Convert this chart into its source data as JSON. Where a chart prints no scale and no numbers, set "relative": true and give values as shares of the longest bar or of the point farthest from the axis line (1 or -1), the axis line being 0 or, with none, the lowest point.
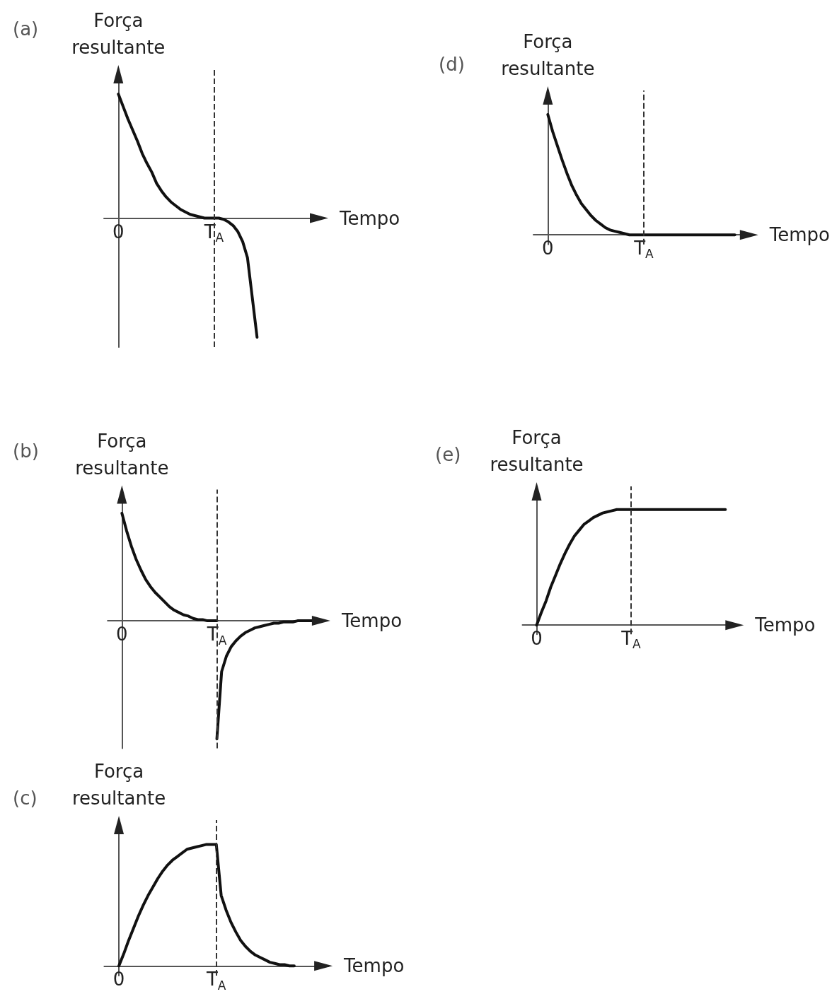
{
  "chart_data": [
    {
      "type": "line",
      "title": "(a)",
      "ylabel": "Força resultante",
      "xlabel": "Tempo",
      "relative": true,
      "categories": [
        null,
        null,
        null,
        "0",
        null,
        null,
        null,
        null,
        null,
        null,
        null,
        null,
        null,
        null,
        null,
        null,
        null,
        null,
        null,
        null,
        null,
        null,
        null,
        "T$_{A}$",
        null,
        null,
        null,
        null,
        null,
        null,
        null,
        null,
        null,
        null,
        null,
        null,
        null,
        null,
        null,
        null,
        null,
        null,
        null,
        null,
        null,
        null,
        null
      ],
      "tick_labels": "x",
      "grid": false,
      "marker": "none",
      "line_style": "solid",
      "ref_lines": [
        {
          "axis": "x",
          "value": "T$_{A}$",
          "color": "#333333",
          "line_style": "dashed"
        }
      ],
      "series": [
        {
          "color": "#111111",
          "values": [
            null,
            null,
            null,
            1,
            0.9,
            0.8,
            0.71,
            0.62,
            0.52,
            0.44,
            0.37,
            0.28,
            0.22,
            0.17,
            0.13,
            0.1,
            0.07,
            0.05,
            0.03,
            0.02,
            0.01,
            0,
            0,
            0,
            0,
            -0.01,
            -0.03,
            -0.06,
            -0.11,
            -0.19,
            -0.32,
            -0.64,
            -0.96,
            null,
            null,
            null,
            null,
            null,
            null,
            null,
            null,
            null,
            null,
            null,
            null,
            null,
            null
          ]
        }
      ]
    },
    {
      "type": "line",
      "title": "(b)",
      "ylabel": "Força resultante",
      "xlabel": "Tempo",
      "relative": true,
      "categories": [
        null,
        null,
        null,
        "0",
        null,
        null,
        null,
        null,
        null,
        null,
        null,
        null,
        null,
        null,
        null,
        null,
        null,
        null,
        null,
        null,
        null,
        null,
        null,
        "T$_{A}$",
        null,
        null,
        null,
        null,
        null,
        null,
        null,
        null,
        null,
        null,
        null,
        null,
        null,
        null,
        null,
        null,
        null,
        null,
        null,
        null,
        null,
        null,
        null
      ],
      "tick_labels": "x",
      "grid": false,
      "marker": "none",
      "line_style": "solid",
      "ref_lines": [
        {
          "axis": "x",
          "value": "T$_{A}$",
          "color": "#333333",
          "line_style": "dashed"
        }
      ],
      "series": [
        {
          "color": "#111111",
          "values": [
            null,
            null,
            null,
            0.91,
            0.76,
            0.63,
            0.52,
            0.43,
            0.35,
            0.29,
            0.24,
            0.2,
            0.16,
            0.12,
            0.09,
            0.07,
            0.05,
            0.04,
            0.02,
            0.01,
            0.01,
            0,
            0,
            0,
            null,
            null,
            null,
            null,
            null,
            null,
            null,
            null,
            null,
            null,
            null,
            null,
            null,
            null,
            null,
            null,
            null,
            null,
            null,
            null,
            null,
            null,
            null
          ]
        },
        {
          "color": "#111111",
          "values": [
            null,
            null,
            null,
            null,
            null,
            null,
            null,
            null,
            null,
            null,
            null,
            null,
            null,
            null,
            null,
            null,
            null,
            null,
            null,
            null,
            null,
            null,
            null,
            -1,
            -0.43,
            -0.3,
            -0.22,
            -0.17,
            -0.13,
            -0.1,
            -0.08,
            -0.06,
            -0.05,
            -0.04,
            -0.03,
            -0.02,
            -0.02,
            -0.01,
            -0.01,
            -0.01,
            0,
            0,
            0,
            0,
            null,
            null,
            null
          ]
        }
      ]
    },
    {
      "type": "line",
      "title": "(c)",
      "ylabel": "Força resultante",
      "xlabel": "Tempo",
      "relative": true,
      "categories": [
        null,
        null,
        null,
        "0",
        null,
        null,
        null,
        null,
        null,
        null,
        null,
        null,
        null,
        null,
        null,
        null,
        null,
        null,
        null,
        null,
        null,
        null,
        null,
        "T$_{A}$",
        null,
        null,
        null,
        null,
        null,
        null,
        null,
        null,
        null,
        null,
        null,
        null,
        null,
        null,
        null,
        null,
        null,
        null,
        null,
        null,
        null,
        null,
        null
      ],
      "tick_labels": "x",
      "grid": false,
      "marker": "none",
      "line_style": "solid",
      "ref_lines": [
        {
          "axis": "x",
          "value": "T$_{A}$",
          "color": "#333333",
          "line_style": "dashed"
        }
      ],
      "series": [
        {
          "color": "#111111",
          "values": [
            null,
            null,
            null,
            0,
            0.1,
            0.21,
            0.31,
            0.41,
            0.5,
            0.58,
            0.65,
            0.72,
            0.78,
            0.83,
            0.87,
            0.9,
            0.93,
            0.96,
            0.97,
            0.98,
            0.99,
            1,
            1,
            1,
            0.58,
            0.46,
            0.36,
            0.28,
            0.21,
            0.16,
            0.12,
            0.09,
            0.07,
            0.05,
            0.03,
            0.02,
            0.01,
            0.01,
            0,
            0,
            null,
            null,
            null,
            null,
            null,
            null,
            null
          ]
        }
      ]
    },
    {
      "type": "line",
      "title": "(d)",
      "ylabel": "Força resultante",
      "xlabel": "Tempo",
      "relative": true,
      "categories": [
        null,
        null,
        null,
        "0",
        null,
        null,
        null,
        null,
        null,
        null,
        null,
        null,
        null,
        null,
        null,
        null,
        null,
        null,
        null,
        null,
        null,
        null,
        null,
        "T$_{A}$",
        null,
        null,
        null,
        null,
        null,
        null,
        null,
        null,
        null,
        null,
        null,
        null,
        null,
        null,
        null,
        null,
        null,
        null,
        null,
        null,
        null,
        null,
        null
      ],
      "tick_labels": "x",
      "grid": false,
      "marker": "none",
      "line_style": "solid",
      "ref_lines": [
        {
          "axis": "x",
          "value": "T$_{A}$",
          "color": "#333333",
          "line_style": "dashed"
        }
      ],
      "series": [
        {
          "color": "#111111",
          "values": [
            null,
            null,
            null,
            1,
            0.86,
            0.74,
            0.62,
            0.51,
            0.41,
            0.33,
            0.26,
            0.21,
            0.16,
            0.12,
            0.09,
            0.06,
            0.04,
            0.03,
            0.02,
            0.01,
            0,
            0,
            0,
            0,
            0,
            0,
            0,
            0,
            0,
            0,
            0,
            0,
            0,
            0,
            0,
            0,
            0,
            0,
            0,
            0,
            0,
            0,
            0,
            null,
            null,
            null,
            null
          ]
        }
      ]
    },
    {
      "type": "line",
      "title": "(e)",
      "ylabel": "Força resultante",
      "xlabel": "Tempo",
      "relative": true,
      "categories": [
        null,
        null,
        null,
        "0",
        null,
        null,
        null,
        null,
        null,
        null,
        null,
        null,
        null,
        null,
        null,
        null,
        null,
        null,
        null,
        null,
        null,
        null,
        null,
        "T$_{A}$",
        null,
        null,
        null,
        null,
        null,
        null,
        null,
        null,
        null,
        null,
        null,
        null,
        null,
        null,
        null,
        null,
        null,
        null,
        null,
        null,
        null,
        null,
        null
      ],
      "tick_labels": "x",
      "grid": false,
      "marker": "none",
      "line_style": "solid",
      "ref_lines": [
        {
          "axis": "x",
          "value": "T$_{A}$",
          "color": "#333333",
          "line_style": "dashed"
        }
      ],
      "series": [
        {
          "color": "#111111",
          "values": [
            null,
            null,
            null,
            0,
            0.11,
            0.21,
            0.33,
            0.43,
            0.53,
            0.62,
            0.7,
            0.77,
            0.82,
            0.87,
            0.9,
            0.93,
            0.95,
            0.97,
            0.98,
            0.99,
            1,
            1,
            1,
            1,
            1,
            1,
            1,
            1,
            1,
            1,
            1,
            1,
            1,
            1,
            1,
            1,
            1,
            1,
            1,
            1,
            1,
            1,
            1,
            1,
            null,
            null,
            null
          ]
        }
      ]
    }
  ]
}
